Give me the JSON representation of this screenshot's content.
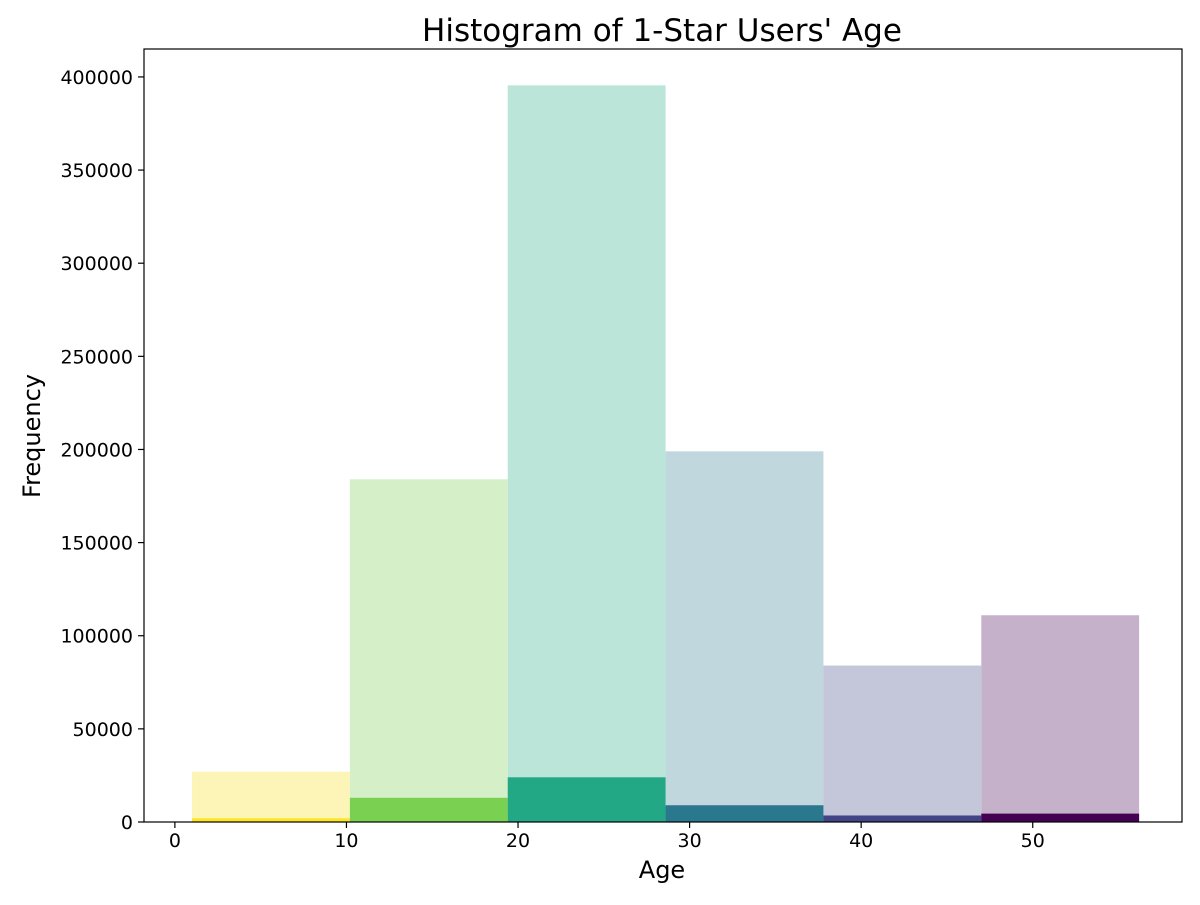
{
  "chart_data": {
    "type": "bar",
    "title": "Histogram of 1-Star Users' Age",
    "xlabel": "Age",
    "ylabel": "Frequency",
    "xlim": [
      -1.8,
      58.7
    ],
    "ylim": [
      0,
      415000
    ],
    "xticks": [
      0,
      10,
      20,
      30,
      40,
      50
    ],
    "yticks": [
      0,
      50000,
      100000,
      150000,
      200000,
      250000,
      300000,
      350000,
      400000
    ],
    "grid": false,
    "series": [
      {
        "bins": [
          {
            "x0": 1.0,
            "x1": 10.2,
            "value": 27000,
            "color": "#fdf5b7"
          },
          {
            "x0": 10.2,
            "x1": 19.4,
            "value": 184000,
            "color": "#d5f0c9"
          },
          {
            "x0": 19.4,
            "x1": 28.6,
            "value": 395500,
            "color": "#bce5d9"
          },
          {
            "x0": 28.6,
            "x1": 37.8,
            "value": 199000,
            "color": "#bfd7dd"
          },
          {
            "x0": 37.8,
            "x1": 47.0,
            "value": 84000,
            "color": "#c4c6d9"
          },
          {
            "x0": 47.0,
            "x1": 56.2,
            "value": 111000,
            "color": "#c6b1ca"
          }
        ]
      },
      {
        "bins": [
          {
            "x0": 1.0,
            "x1": 10.2,
            "value": 2000,
            "color": "#fde725"
          },
          {
            "x0": 10.2,
            "x1": 19.4,
            "value": 13000,
            "color": "#7ad151"
          },
          {
            "x0": 19.4,
            "x1": 28.6,
            "value": 24000,
            "color": "#22a884"
          },
          {
            "x0": 28.6,
            "x1": 37.8,
            "value": 9000,
            "color": "#2a788e"
          },
          {
            "x0": 37.8,
            "x1": 47.0,
            "value": 3500,
            "color": "#414487"
          },
          {
            "x0": 47.0,
            "x1": 56.2,
            "value": 4500,
            "color": "#440154"
          }
        ]
      }
    ]
  }
}
